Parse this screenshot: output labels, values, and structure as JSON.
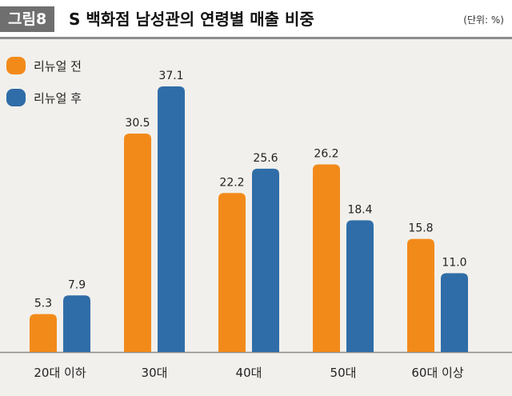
{
  "header": {
    "figure_label": "그림8",
    "title": "S 백화점 남성관의 연령별 매출 비중",
    "unit": "(단위: %)"
  },
  "chart_data": {
    "type": "bar",
    "title": "S 백화점 남성관의 연령별 매출 비중",
    "unit": "%",
    "categories": [
      "20대 이하",
      "30대",
      "40대",
      "50대",
      "60대 이상"
    ],
    "series": [
      {
        "name": "리뉴얼 전",
        "color": "#f28a1a",
        "values": [
          5.3,
          30.5,
          22.2,
          26.2,
          15.8
        ],
        "labels": [
          "5.3",
          "30.5",
          "22.2",
          "26.2",
          "15.8"
        ]
      },
      {
        "name": "리뉴얼 후",
        "color": "#2f6da8",
        "values": [
          7.9,
          37.1,
          25.6,
          18.4,
          11.0
        ],
        "labels": [
          "7.9",
          "37.1",
          "25.6",
          "18.4",
          "11.0"
        ]
      }
    ],
    "ylim": [
      0,
      40
    ],
    "grid": false,
    "legend": "top-left"
  }
}
